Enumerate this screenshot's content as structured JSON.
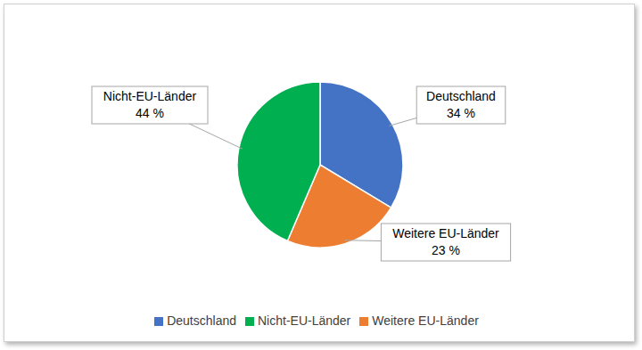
{
  "chart_data": {
    "type": "pie",
    "categories": [
      "Deutschland",
      "Weitere EU-Länder",
      "Nicht-EU-Länder"
    ],
    "values": [
      34,
      23,
      44
    ],
    "value_labels": [
      "34 %",
      "23 %",
      "44 %"
    ],
    "colors": [
      "#4472c4",
      "#ed7d31",
      "#00b050"
    ],
    "legend": "bottom",
    "data_labels": true
  }
}
